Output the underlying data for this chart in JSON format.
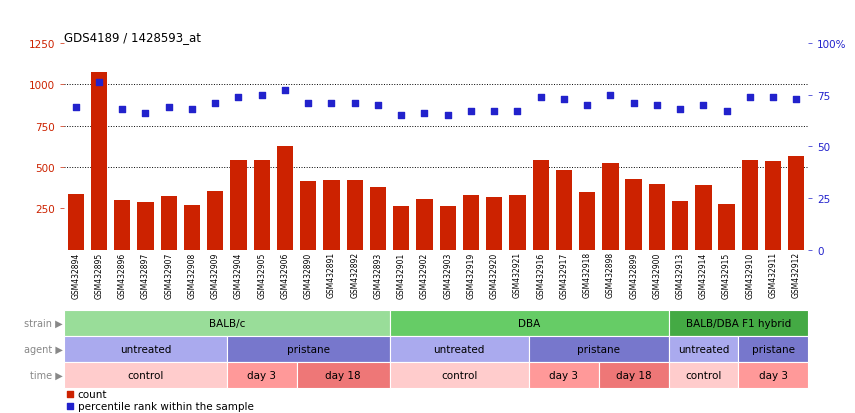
{
  "title": "GDS4189 / 1428593_at",
  "samples": [
    "GSM432894",
    "GSM432895",
    "GSM432896",
    "GSM432897",
    "GSM432907",
    "GSM432908",
    "GSM432909",
    "GSM432904",
    "GSM432905",
    "GSM432906",
    "GSM432890",
    "GSM432891",
    "GSM432892",
    "GSM432893",
    "GSM432901",
    "GSM432902",
    "GSM432903",
    "GSM432919",
    "GSM432920",
    "GSM432921",
    "GSM432916",
    "GSM432917",
    "GSM432918",
    "GSM432898",
    "GSM432899",
    "GSM432900",
    "GSM432913",
    "GSM432914",
    "GSM432915",
    "GSM432910",
    "GSM432911",
    "GSM432912"
  ],
  "counts": [
    340,
    1075,
    300,
    290,
    325,
    270,
    355,
    545,
    540,
    630,
    415,
    420,
    420,
    380,
    265,
    305,
    265,
    330,
    320,
    330,
    545,
    480,
    350,
    525,
    430,
    395,
    295,
    390,
    280,
    540,
    535,
    565
  ],
  "percentiles": [
    69,
    81,
    68,
    66,
    69,
    68,
    71,
    74,
    75,
    77,
    71,
    71,
    71,
    70,
    65,
    66,
    65,
    67,
    67,
    67,
    74,
    73,
    70,
    75,
    71,
    70,
    68,
    70,
    67,
    74,
    74,
    73
  ],
  "bar_color": "#cc2200",
  "dot_color": "#2222cc",
  "ylim_left": [
    0,
    1250
  ],
  "ylim_right": [
    0,
    100
  ],
  "yticks_left": [
    250,
    500,
    750,
    1000,
    1250
  ],
  "yticks_right": [
    0,
    25,
    50,
    75,
    100
  ],
  "grid_vals": [
    500,
    750,
    1000
  ],
  "strain_groups": [
    {
      "label": "BALB/c",
      "start": 0,
      "end": 14,
      "color": "#99dd99"
    },
    {
      "label": "DBA",
      "start": 14,
      "end": 26,
      "color": "#66cc66"
    },
    {
      "label": "BALB/DBA F1 hybrid",
      "start": 26,
      "end": 32,
      "color": "#44aa44"
    }
  ],
  "agent_groups": [
    {
      "label": "untreated",
      "start": 0,
      "end": 7,
      "color": "#aaaaee"
    },
    {
      "label": "pristane",
      "start": 7,
      "end": 14,
      "color": "#7777cc"
    },
    {
      "label": "untreated",
      "start": 14,
      "end": 20,
      "color": "#aaaaee"
    },
    {
      "label": "pristane",
      "start": 20,
      "end": 26,
      "color": "#7777cc"
    },
    {
      "label": "untreated",
      "start": 26,
      "end": 29,
      "color": "#aaaaee"
    },
    {
      "label": "pristane",
      "start": 29,
      "end": 32,
      "color": "#7777cc"
    }
  ],
  "time_groups": [
    {
      "label": "control",
      "start": 0,
      "end": 7,
      "color": "#ffcccc"
    },
    {
      "label": "day 3",
      "start": 7,
      "end": 10,
      "color": "#ff9999"
    },
    {
      "label": "day 18",
      "start": 10,
      "end": 14,
      "color": "#ee7777"
    },
    {
      "label": "control",
      "start": 14,
      "end": 20,
      "color": "#ffcccc"
    },
    {
      "label": "day 3",
      "start": 20,
      "end": 23,
      "color": "#ff9999"
    },
    {
      "label": "day 18",
      "start": 23,
      "end": 26,
      "color": "#ee7777"
    },
    {
      "label": "control",
      "start": 26,
      "end": 29,
      "color": "#ffcccc"
    },
    {
      "label": "day 3",
      "start": 29,
      "end": 32,
      "color": "#ff9999"
    }
  ],
  "legend_count_color": "#cc2200",
  "legend_pct_color": "#2222cc",
  "bg_color": "#ffffff",
  "axis_label_color": "#cc2200",
  "right_axis_label_color": "#2222cc",
  "row_labels": [
    "strain",
    "agent",
    "time"
  ],
  "row_label_color": "#888888"
}
